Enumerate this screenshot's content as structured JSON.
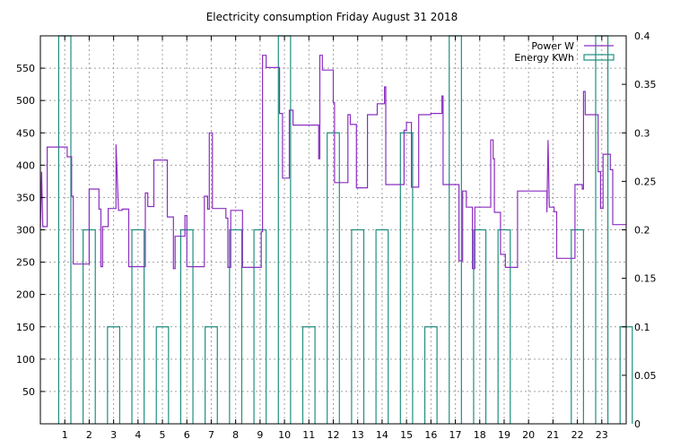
{
  "chart_data": {
    "type": "line",
    "title": "Electricity consumption Friday August 31 2018",
    "xlabel": "",
    "ylabel": "",
    "xlim": [
      0,
      24
    ],
    "ylim": [
      0,
      600
    ],
    "y2lim": [
      0,
      0.4
    ],
    "x_ticks": [
      1,
      2,
      3,
      4,
      5,
      6,
      7,
      8,
      9,
      10,
      11,
      12,
      13,
      14,
      15,
      16,
      17,
      18,
      19,
      20,
      21,
      22,
      23
    ],
    "y_ticks": [
      50,
      100,
      150,
      200,
      250,
      300,
      350,
      400,
      450,
      500,
      550
    ],
    "y2_ticks": [
      "0",
      "0.05",
      "0.1",
      "0.15",
      "0.2",
      "0.25",
      "0.3",
      "0.35",
      "0.4"
    ],
    "y2_tick_values": [
      0,
      0.05,
      0.1,
      0.15,
      0.2,
      0.25,
      0.3,
      0.35,
      0.4
    ],
    "grid": true,
    "legend_position": "top-right",
    "series": [
      {
        "name": "Power W",
        "axis": "left",
        "color": "#8b2fc0",
        "style": "step",
        "points": [
          [
            0.0,
            305
          ],
          [
            0.05,
            390
          ],
          [
            0.1,
            305
          ],
          [
            0.28,
            305
          ],
          [
            0.28,
            428
          ],
          [
            1.1,
            428
          ],
          [
            1.1,
            413
          ],
          [
            1.28,
            413
          ],
          [
            1.28,
            352
          ],
          [
            1.35,
            352
          ],
          [
            1.35,
            247
          ],
          [
            2.0,
            247
          ],
          [
            2.0,
            363
          ],
          [
            2.4,
            363
          ],
          [
            2.4,
            332
          ],
          [
            2.48,
            332
          ],
          [
            2.48,
            243
          ],
          [
            2.55,
            243
          ],
          [
            2.55,
            305
          ],
          [
            2.78,
            305
          ],
          [
            2.78,
            333
          ],
          [
            3.1,
            333
          ],
          [
            3.1,
            432
          ],
          [
            3.2,
            330
          ],
          [
            3.35,
            330
          ],
          [
            3.35,
            332
          ],
          [
            3.62,
            332
          ],
          [
            3.62,
            243
          ],
          [
            4.3,
            243
          ],
          [
            4.3,
            357
          ],
          [
            4.4,
            357
          ],
          [
            4.4,
            336
          ],
          [
            4.65,
            336
          ],
          [
            4.65,
            408
          ],
          [
            5.2,
            408
          ],
          [
            5.2,
            320
          ],
          [
            5.45,
            320
          ],
          [
            5.45,
            240
          ],
          [
            5.52,
            240
          ],
          [
            5.52,
            290
          ],
          [
            5.92,
            290
          ],
          [
            5.92,
            322
          ],
          [
            6.0,
            322
          ],
          [
            6.0,
            243
          ],
          [
            6.72,
            243
          ],
          [
            6.72,
            352
          ],
          [
            6.85,
            352
          ],
          [
            6.85,
            332
          ],
          [
            6.92,
            332
          ],
          [
            6.92,
            450
          ],
          [
            7.05,
            450
          ],
          [
            7.05,
            333
          ],
          [
            7.6,
            333
          ],
          [
            7.6,
            318
          ],
          [
            7.68,
            318
          ],
          [
            7.68,
            242
          ],
          [
            7.8,
            242
          ],
          [
            7.8,
            330
          ],
          [
            8.28,
            330
          ],
          [
            8.28,
            242
          ],
          [
            9.05,
            242
          ],
          [
            9.05,
            297
          ],
          [
            9.1,
            297
          ],
          [
            9.1,
            570
          ],
          [
            9.25,
            570
          ],
          [
            9.25,
            551
          ],
          [
            9.8,
            551
          ],
          [
            9.8,
            480
          ],
          [
            9.92,
            480
          ],
          [
            9.92,
            380
          ],
          [
            10.2,
            380
          ],
          [
            10.2,
            485
          ],
          [
            10.35,
            485
          ],
          [
            10.35,
            462
          ],
          [
            11.4,
            462
          ],
          [
            11.4,
            410
          ],
          [
            11.45,
            410
          ],
          [
            11.45,
            570
          ],
          [
            11.55,
            570
          ],
          [
            11.55,
            547
          ],
          [
            12.0,
            547
          ],
          [
            12.0,
            497
          ],
          [
            12.05,
            497
          ],
          [
            12.05,
            373
          ],
          [
            12.6,
            373
          ],
          [
            12.6,
            478
          ],
          [
            12.7,
            478
          ],
          [
            12.7,
            463
          ],
          [
            12.95,
            463
          ],
          [
            12.95,
            365
          ],
          [
            13.4,
            365
          ],
          [
            13.4,
            478
          ],
          [
            13.8,
            478
          ],
          [
            13.8,
            495
          ],
          [
            14.1,
            495
          ],
          [
            14.1,
            521
          ],
          [
            14.15,
            521
          ],
          [
            14.15,
            370
          ],
          [
            14.9,
            370
          ],
          [
            14.9,
            454
          ],
          [
            15.0,
            454
          ],
          [
            15.0,
            466
          ],
          [
            15.2,
            466
          ],
          [
            15.2,
            366
          ],
          [
            15.5,
            366
          ],
          [
            15.5,
            478
          ],
          [
            16.0,
            478
          ],
          [
            16.0,
            480
          ],
          [
            16.45,
            480
          ],
          [
            16.45,
            507
          ],
          [
            16.5,
            507
          ],
          [
            16.5,
            370
          ],
          [
            17.15,
            370
          ],
          [
            17.15,
            252
          ],
          [
            17.3,
            252
          ],
          [
            17.3,
            360
          ],
          [
            17.45,
            360
          ],
          [
            17.45,
            335
          ],
          [
            17.7,
            335
          ],
          [
            17.7,
            240
          ],
          [
            17.8,
            240
          ],
          [
            17.8,
            335
          ],
          [
            18.45,
            335
          ],
          [
            18.45,
            439
          ],
          [
            18.55,
            439
          ],
          [
            18.55,
            410
          ],
          [
            18.6,
            410
          ],
          [
            18.6,
            327
          ],
          [
            18.85,
            327
          ],
          [
            18.85,
            262
          ],
          [
            19.05,
            262
          ],
          [
            19.05,
            242
          ],
          [
            19.55,
            242
          ],
          [
            19.55,
            360
          ],
          [
            20.75,
            360
          ],
          [
            20.75,
            327
          ],
          [
            20.8,
            439
          ],
          [
            20.85,
            335
          ],
          [
            21.05,
            335
          ],
          [
            21.05,
            328
          ],
          [
            21.15,
            328
          ],
          [
            21.15,
            256
          ],
          [
            21.9,
            256
          ],
          [
            21.9,
            370
          ],
          [
            22.2,
            370
          ],
          [
            22.2,
            363
          ],
          [
            22.25,
            363
          ],
          [
            22.25,
            514
          ],
          [
            22.32,
            514
          ],
          [
            22.32,
            478
          ],
          [
            22.85,
            478
          ],
          [
            22.85,
            390
          ],
          [
            22.95,
            390
          ],
          [
            22.95,
            333
          ],
          [
            23.05,
            333
          ],
          [
            23.05,
            417
          ],
          [
            23.35,
            417
          ],
          [
            23.35,
            393
          ],
          [
            23.45,
            393
          ],
          [
            23.45,
            308
          ],
          [
            24.0,
            308
          ]
        ]
      },
      {
        "name": "Energy KWh",
        "axis": "right",
        "color": "#1f8f7f",
        "style": "bars",
        "bar_width": 0.5,
        "x": [
          0.0,
          1.0,
          2.0,
          3.0,
          4.0,
          5.0,
          6.0,
          7.0,
          8.0,
          9.0,
          10.0,
          11.0,
          12.0,
          13.0,
          14.0,
          15.0,
          16.0,
          17.0,
          18.0,
          19.0,
          20.0,
          21.0,
          22.0,
          23.0
        ],
        "values": [
          0.4,
          0.2,
          0.1,
          0.2,
          0.1,
          0.2,
          0.1,
          0.2,
          0.2,
          0.4,
          0.1,
          0.3,
          0.2,
          0.2,
          0.3,
          0.1,
          0.4,
          0.2,
          0.2,
          0.0,
          0.0,
          0.2,
          0.4,
          0.1
        ]
      }
    ]
  }
}
